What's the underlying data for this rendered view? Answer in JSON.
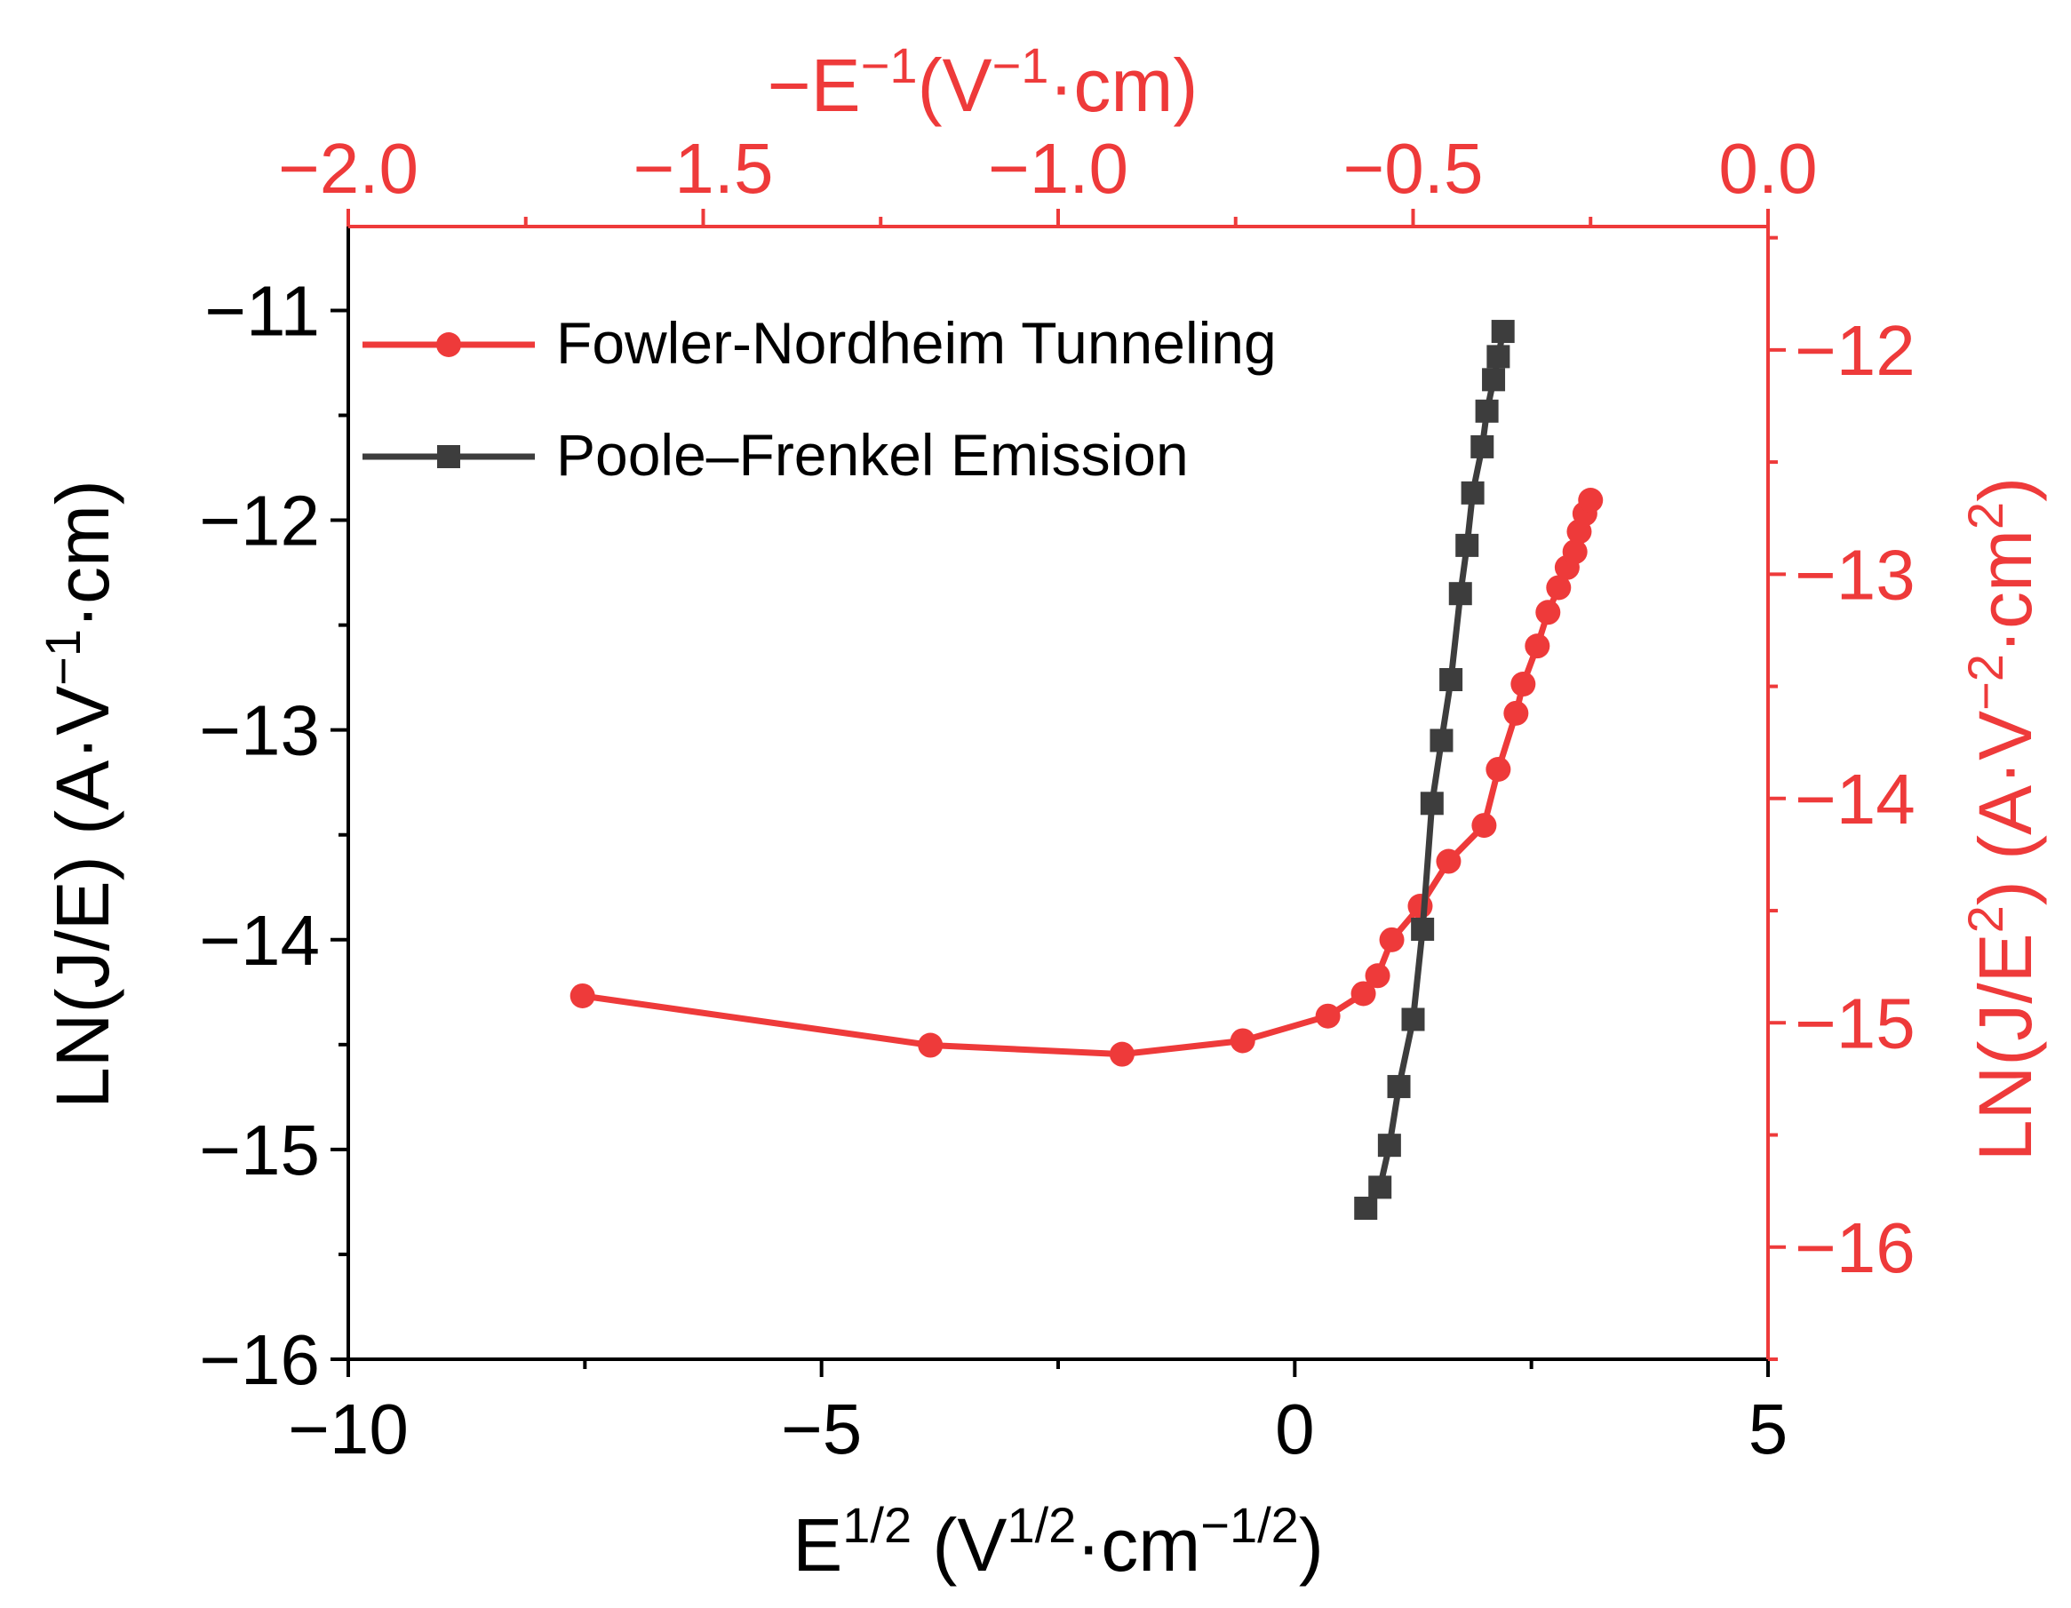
{
  "chart_data": {
    "type": "line",
    "colors": {
      "fn": "#ee3a3a",
      "pf": "#3d3d3d",
      "axis_left": "#000000",
      "axis_right": "#ee3a3a"
    },
    "axes": {
      "bottom": {
        "range": [
          -10,
          5
        ],
        "ticks": [
          -10,
          -5,
          0,
          5
        ],
        "tick_labels": [
          "−10",
          "−5",
          "0",
          "5"
        ],
        "minor_step": 2.5,
        "label": {
          "main": "E",
          "sup1": "1/2",
          "mid": " (V",
          "sup2": "1/2",
          "mid2": "·cm",
          "sup3": "−1/2",
          "end": ")"
        }
      },
      "top": {
        "range": [
          -2.0,
          0.0
        ],
        "ticks": [
          -2.0,
          -1.5,
          -1.0,
          -0.5,
          0.0
        ],
        "tick_labels": [
          "−2.0",
          "−1.5",
          "−1.0",
          "−0.5",
          "0.0"
        ],
        "minor_step": 0.25,
        "label": {
          "main": "−E",
          "sup1": "−1",
          "mid": "(V",
          "sup2": "−1",
          "end": "·cm)"
        }
      },
      "left": {
        "range": [
          -16,
          -10.6
        ],
        "ticks": [
          -16,
          -15,
          -14,
          -13,
          -12,
          -11
        ],
        "tick_labels": [
          "−16",
          "−15",
          "−14",
          "−13",
          "−12",
          "−11"
        ],
        "minor_step": 0.5,
        "label": {
          "main": "LN(J/E) (A·V",
          "sup1": "−1",
          "end": "·cm)"
        }
      },
      "right": {
        "range": [
          -16.5,
          -11.45
        ],
        "ticks": [
          -16,
          -15,
          -14,
          -13,
          -12
        ],
        "tick_labels": [
          "−16",
          "−15",
          "−14",
          "−13",
          "−12"
        ],
        "minor_step": 0.5,
        "label": {
          "main": "LN(J/E",
          "sup1": "2",
          "mid": ") (A·V",
          "sup2": "−2",
          "mid2": "·cm",
          "sup3": "2",
          "end": ")"
        }
      }
    },
    "legend": {
      "position": "top-left",
      "entries": [
        {
          "label": "Fowler-Nordheim Tunneling",
          "marker": "circle",
          "series": "fn"
        },
        {
          "label": "Poole–Frenkel Emission",
          "marker": "square",
          "series": "pf"
        }
      ]
    },
    "series": [
      {
        "id": "fn",
        "name": "Fowler-Nordheim Tunneling",
        "x_axis": "top",
        "y_axis": "right",
        "marker": "circle",
        "points": [
          [
            -1.67,
            -14.88
          ],
          [
            -1.18,
            -15.1
          ],
          [
            -0.91,
            -15.14
          ],
          [
            -0.74,
            -15.08
          ],
          [
            -0.62,
            -14.97
          ],
          [
            -0.57,
            -14.87
          ],
          [
            -0.55,
            -14.79
          ],
          [
            -0.53,
            -14.63
          ],
          [
            -0.49,
            -14.48
          ],
          [
            -0.45,
            -14.28
          ],
          [
            -0.4,
            -14.12
          ],
          [
            -0.38,
            -13.87
          ],
          [
            -0.355,
            -13.62
          ],
          [
            -0.345,
            -13.49
          ],
          [
            -0.325,
            -13.32
          ],
          [
            -0.31,
            -13.17
          ],
          [
            -0.295,
            -13.06
          ],
          [
            -0.283,
            -12.97
          ],
          [
            -0.272,
            -12.9
          ],
          [
            -0.266,
            -12.81
          ],
          [
            -0.258,
            -12.73
          ],
          [
            -0.25,
            -12.67
          ]
        ]
      },
      {
        "id": "pf",
        "name": "Poole–Frenkel Emission",
        "x_axis": "bottom",
        "y_axis": "left",
        "marker": "square",
        "points": [
          [
            0.75,
            -15.28
          ],
          [
            0.9,
            -15.18
          ],
          [
            1.0,
            -14.98
          ],
          [
            1.1,
            -14.7
          ],
          [
            1.25,
            -14.38
          ],
          [
            1.35,
            -13.95
          ],
          [
            1.45,
            -13.35
          ],
          [
            1.55,
            -13.05
          ],
          [
            1.65,
            -12.76
          ],
          [
            1.75,
            -12.35
          ],
          [
            1.82,
            -12.12
          ],
          [
            1.88,
            -11.87
          ],
          [
            1.98,
            -11.65
          ],
          [
            2.03,
            -11.48
          ],
          [
            2.1,
            -11.33
          ],
          [
            2.15,
            -11.22
          ],
          [
            2.2,
            -11.1
          ]
        ]
      }
    ]
  }
}
